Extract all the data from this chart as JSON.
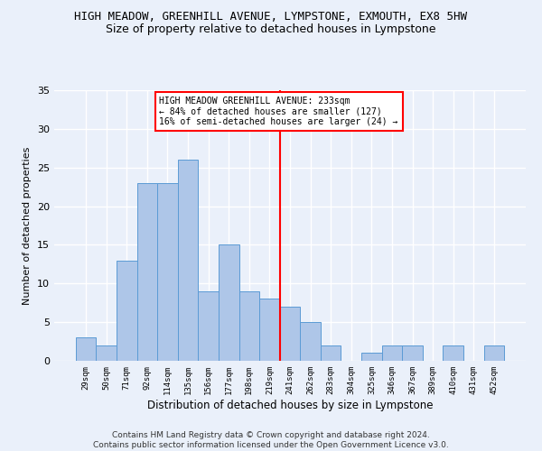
{
  "title": "HIGH MEADOW, GREENHILL AVENUE, LYMPSTONE, EXMOUTH, EX8 5HW",
  "subtitle": "Size of property relative to detached houses in Lympstone",
  "xlabel": "Distribution of detached houses by size in Lympstone",
  "ylabel": "Number of detached properties",
  "bin_labels": [
    "29sqm",
    "50sqm",
    "71sqm",
    "92sqm",
    "114sqm",
    "135sqm",
    "156sqm",
    "177sqm",
    "198sqm",
    "219sqm",
    "241sqm",
    "262sqm",
    "283sqm",
    "304sqm",
    "325sqm",
    "346sqm",
    "367sqm",
    "389sqm",
    "410sqm",
    "431sqm",
    "452sqm"
  ],
  "bar_heights": [
    3,
    2,
    13,
    23,
    23,
    26,
    9,
    15,
    9,
    8,
    7,
    5,
    2,
    0,
    1,
    2,
    2,
    0,
    2,
    0,
    2
  ],
  "bar_color": "#aec6e8",
  "bar_edgecolor": "#5b9bd5",
  "annotation_line1": "HIGH MEADOW GREENHILL AVENUE: 233sqm",
  "annotation_line2": "← 84% of detached houses are smaller (127)",
  "annotation_line3": "16% of semi-detached houses are larger (24) →",
  "ylim": [
    0,
    35
  ],
  "yticks": [
    0,
    5,
    10,
    15,
    20,
    25,
    30,
    35
  ],
  "footer1": "Contains HM Land Registry data © Crown copyright and database right 2024.",
  "footer2": "Contains public sector information licensed under the Open Government Licence v3.0.",
  "bg_color": "#eaf0fa",
  "grid_color": "#ffffff",
  "title_fontsize": 9,
  "subtitle_fontsize": 9
}
